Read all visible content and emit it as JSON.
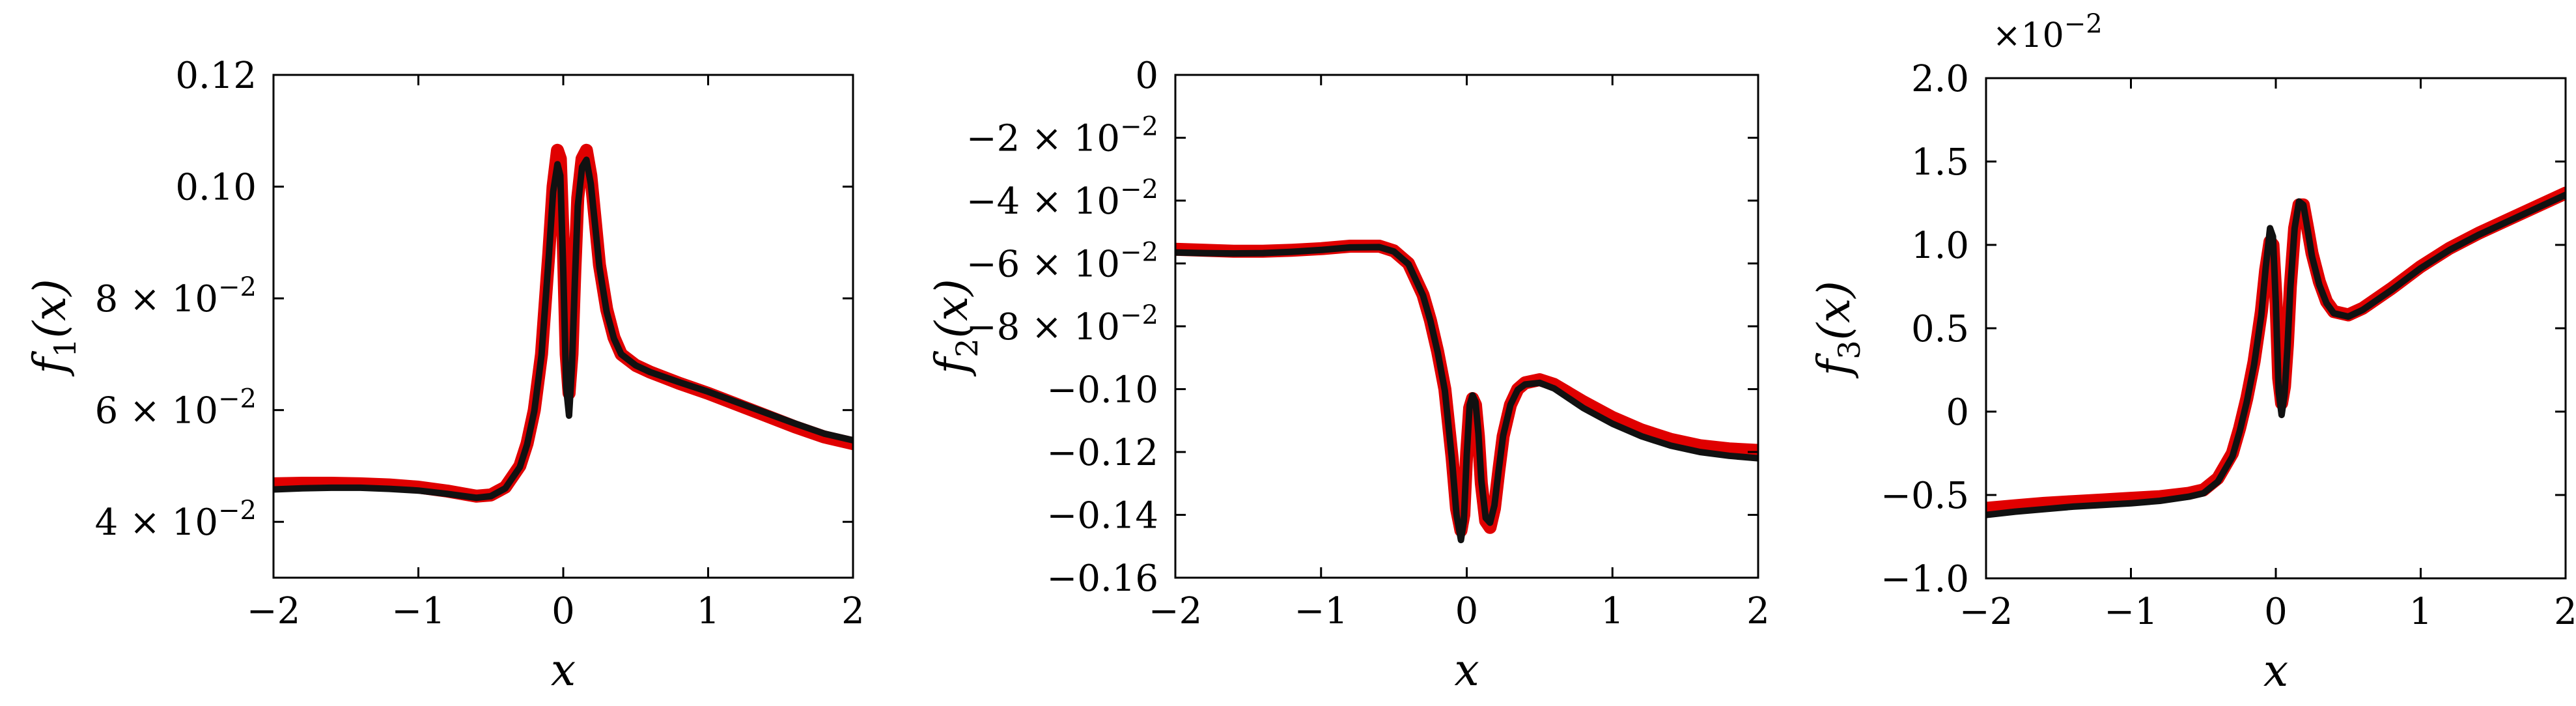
{
  "chart_data": [
    {
      "type": "line",
      "title": "",
      "xlabel": "x",
      "ylabel_main": "f",
      "ylabel_sub": "1",
      "ylabel_tail": "(x)",
      "xlim": [
        -2,
        2
      ],
      "ylim": [
        0.03,
        0.12
      ],
      "grid": false,
      "exponent_label": "",
      "x_ticks": [
        {
          "value": -2,
          "label": "−2"
        },
        {
          "value": -1,
          "label": "−1"
        },
        {
          "value": 0,
          "label": "0"
        },
        {
          "value": 1,
          "label": "1"
        },
        {
          "value": 2,
          "label": "2"
        }
      ],
      "y_ticks": [
        {
          "value": 0.04,
          "label": "4 × 10",
          "exp": "−2"
        },
        {
          "value": 0.06,
          "label": "6 × 10",
          "exp": "−2"
        },
        {
          "value": 0.08,
          "label": "8 × 10",
          "exp": "−2"
        },
        {
          "value": 0.1,
          "label": "0.10",
          "exp": ""
        },
        {
          "value": 0.12,
          "label": "0.12",
          "exp": ""
        }
      ],
      "series": [
        {
          "color": "#e00000",
          "x": [
            -2,
            -1.8,
            -1.6,
            -1.4,
            -1.2,
            -1.0,
            -0.8,
            -0.6,
            -0.5,
            -0.4,
            -0.3,
            -0.25,
            -0.2,
            -0.15,
            -0.1,
            -0.07,
            -0.04,
            -0.02,
            0.0,
            0.02,
            0.04,
            0.06,
            0.08,
            0.1,
            0.13,
            0.16,
            0.19,
            0.22,
            0.25,
            0.3,
            0.35,
            0.4,
            0.5,
            0.6,
            0.8,
            1.0,
            1.2,
            1.4,
            1.6,
            1.8,
            2.0
          ],
          "y": [
            0.0468,
            0.0469,
            0.0469,
            0.0468,
            0.0466,
            0.0462,
            0.0455,
            0.0446,
            0.0448,
            0.0462,
            0.05,
            0.054,
            0.06,
            0.07,
            0.088,
            0.1,
            0.1065,
            0.105,
            0.09,
            0.07,
            0.063,
            0.07,
            0.085,
            0.098,
            0.105,
            0.1065,
            0.102,
            0.094,
            0.086,
            0.078,
            0.073,
            0.07,
            0.068,
            0.0668,
            0.0648,
            0.063,
            0.061,
            0.059,
            0.057,
            0.0552,
            0.054
          ]
        },
        {
          "color": "#111111",
          "x": [
            -2,
            -1.8,
            -1.6,
            -1.4,
            -1.2,
            -1.0,
            -0.8,
            -0.6,
            -0.5,
            -0.4,
            -0.3,
            -0.25,
            -0.2,
            -0.15,
            -0.1,
            -0.07,
            -0.04,
            -0.02,
            0.0,
            0.02,
            0.04,
            0.06,
            0.08,
            0.1,
            0.13,
            0.16,
            0.19,
            0.22,
            0.25,
            0.3,
            0.35,
            0.4,
            0.5,
            0.6,
            0.8,
            1.0,
            1.2,
            1.4,
            1.6,
            1.8,
            2.0
          ],
          "y": [
            0.0458,
            0.046,
            0.0461,
            0.0461,
            0.0459,
            0.0456,
            0.045,
            0.0443,
            0.0446,
            0.046,
            0.0498,
            0.0538,
            0.0598,
            0.0698,
            0.0875,
            0.099,
            0.104,
            0.102,
            0.085,
            0.064,
            0.059,
            0.068,
            0.083,
            0.0965,
            0.1035,
            0.1048,
            0.1005,
            0.093,
            0.0855,
            0.0775,
            0.0728,
            0.07,
            0.068,
            0.0668,
            0.065,
            0.0633,
            0.0614,
            0.0595,
            0.0576,
            0.0558,
            0.0546
          ]
        }
      ]
    },
    {
      "type": "line",
      "title": "",
      "xlabel": "x",
      "ylabel_main": "f",
      "ylabel_sub": "2",
      "ylabel_tail": "(x)",
      "xlim": [
        -2,
        2
      ],
      "ylim": [
        -0.16,
        0
      ],
      "grid": false,
      "exponent_label": "",
      "x_ticks": [
        {
          "value": -2,
          "label": "−2"
        },
        {
          "value": -1,
          "label": "−1"
        },
        {
          "value": 0,
          "label": "0"
        },
        {
          "value": 1,
          "label": "1"
        },
        {
          "value": 2,
          "label": "2"
        }
      ],
      "y_ticks": [
        {
          "value": -0.16,
          "label": "−0.16",
          "exp": ""
        },
        {
          "value": -0.14,
          "label": "−0.14",
          "exp": ""
        },
        {
          "value": -0.12,
          "label": "−0.12",
          "exp": ""
        },
        {
          "value": -0.1,
          "label": "−0.10",
          "exp": ""
        },
        {
          "value": -0.08,
          "label": "−8 × 10",
          "exp": "−2"
        },
        {
          "value": -0.06,
          "label": "−6 × 10",
          "exp": "−2"
        },
        {
          "value": -0.04,
          "label": "−4 × 10",
          "exp": "−2"
        },
        {
          "value": -0.02,
          "label": "−2 × 10",
          "exp": "−2"
        },
        {
          "value": 0,
          "label": "0",
          "exp": ""
        }
      ],
      "series": [
        {
          "color": "#e00000",
          "x": [
            -2,
            -1.8,
            -1.6,
            -1.4,
            -1.2,
            -1.0,
            -0.8,
            -0.6,
            -0.5,
            -0.4,
            -0.3,
            -0.25,
            -0.2,
            -0.15,
            -0.1,
            -0.07,
            -0.04,
            -0.02,
            0.0,
            0.02,
            0.04,
            0.06,
            0.08,
            0.1,
            0.13,
            0.16,
            0.19,
            0.22,
            0.25,
            0.3,
            0.35,
            0.4,
            0.5,
            0.6,
            0.8,
            1.0,
            1.2,
            1.4,
            1.6,
            1.8,
            2.0
          ],
          "y": [
            -0.0555,
            -0.0558,
            -0.0561,
            -0.0561,
            -0.0558,
            -0.0553,
            -0.0545,
            -0.0545,
            -0.056,
            -0.06,
            -0.07,
            -0.078,
            -0.088,
            -0.1,
            -0.122,
            -0.138,
            -0.145,
            -0.14,
            -0.12,
            -0.106,
            -0.103,
            -0.105,
            -0.115,
            -0.13,
            -0.142,
            -0.144,
            -0.138,
            -0.126,
            -0.115,
            -0.105,
            -0.1,
            -0.098,
            -0.097,
            -0.0985,
            -0.104,
            -0.109,
            -0.113,
            -0.116,
            -0.118,
            -0.119,
            -0.1195
          ]
        },
        {
          "color": "#111111",
          "x": [
            -2,
            -1.8,
            -1.6,
            -1.4,
            -1.2,
            -1.0,
            -0.8,
            -0.6,
            -0.5,
            -0.4,
            -0.3,
            -0.25,
            -0.2,
            -0.15,
            -0.1,
            -0.07,
            -0.04,
            -0.02,
            0.0,
            0.02,
            0.04,
            0.06,
            0.08,
            0.1,
            0.13,
            0.16,
            0.19,
            0.22,
            0.25,
            0.3,
            0.35,
            0.4,
            0.5,
            0.6,
            0.8,
            1.0,
            1.2,
            1.4,
            1.6,
            1.8,
            2.0
          ],
          "y": [
            -0.0565,
            -0.0567,
            -0.0568,
            -0.0567,
            -0.0563,
            -0.0557,
            -0.0549,
            -0.0548,
            -0.0562,
            -0.0602,
            -0.0702,
            -0.0782,
            -0.0882,
            -0.1005,
            -0.123,
            -0.14,
            -0.148,
            -0.142,
            -0.121,
            -0.105,
            -0.102,
            -0.104,
            -0.114,
            -0.129,
            -0.141,
            -0.1425,
            -0.137,
            -0.1255,
            -0.1148,
            -0.105,
            -0.1002,
            -0.0985,
            -0.098,
            -0.0998,
            -0.106,
            -0.111,
            -0.115,
            -0.118,
            -0.12,
            -0.1212,
            -0.122
          ]
        }
      ]
    },
    {
      "type": "line",
      "title": "",
      "xlabel": "x",
      "ylabel_main": "f",
      "ylabel_sub": "3",
      "ylabel_tail": "(x)",
      "xlim": [
        -2,
        2
      ],
      "ylim": [
        -1.0,
        2.0
      ],
      "grid": false,
      "exponent_label": "×10",
      "exponent_power": "−2",
      "x_ticks": [
        {
          "value": -2,
          "label": "−2"
        },
        {
          "value": -1,
          "label": "−1"
        },
        {
          "value": 0,
          "label": "0"
        },
        {
          "value": 1,
          "label": "1"
        },
        {
          "value": 2,
          "label": "2"
        }
      ],
      "y_ticks": [
        {
          "value": -1.0,
          "label": "−1.0",
          "exp": ""
        },
        {
          "value": -0.5,
          "label": "−0.5",
          "exp": ""
        },
        {
          "value": 0,
          "label": "0",
          "exp": ""
        },
        {
          "value": 0.5,
          "label": "0.5",
          "exp": ""
        },
        {
          "value": 1.0,
          "label": "1.0",
          "exp": ""
        },
        {
          "value": 1.5,
          "label": "1.5",
          "exp": ""
        },
        {
          "value": 2.0,
          "label": "2.0",
          "exp": ""
        }
      ],
      "series": [
        {
          "color": "#e00000",
          "x": [
            -2,
            -1.8,
            -1.6,
            -1.4,
            -1.2,
            -1.0,
            -0.8,
            -0.6,
            -0.5,
            -0.4,
            -0.3,
            -0.25,
            -0.2,
            -0.15,
            -0.1,
            -0.07,
            -0.04,
            -0.02,
            0.0,
            0.02,
            0.04,
            0.06,
            0.08,
            0.1,
            0.13,
            0.16,
            0.19,
            0.22,
            0.25,
            0.3,
            0.35,
            0.4,
            0.5,
            0.6,
            0.8,
            1.0,
            1.2,
            1.4,
            1.6,
            1.8,
            2.0
          ],
          "y": [
            -0.58,
            -0.565,
            -0.55,
            -0.54,
            -0.53,
            -0.52,
            -0.51,
            -0.49,
            -0.47,
            -0.4,
            -0.25,
            -0.1,
            0.08,
            0.3,
            0.6,
            0.85,
            1.02,
            1.0,
            0.7,
            0.2,
            0.05,
            0.15,
            0.4,
            0.75,
            1.1,
            1.24,
            1.24,
            1.1,
            0.95,
            0.78,
            0.66,
            0.6,
            0.58,
            0.62,
            0.74,
            0.87,
            0.98,
            1.07,
            1.15,
            1.23,
            1.31
          ]
        },
        {
          "color": "#111111",
          "x": [
            -2,
            -1.8,
            -1.6,
            -1.4,
            -1.2,
            -1.0,
            -0.8,
            -0.6,
            -0.5,
            -0.4,
            -0.3,
            -0.25,
            -0.2,
            -0.15,
            -0.1,
            -0.07,
            -0.04,
            -0.02,
            0.0,
            0.02,
            0.04,
            0.06,
            0.08,
            0.1,
            0.13,
            0.16,
            0.19,
            0.22,
            0.25,
            0.3,
            0.35,
            0.4,
            0.5,
            0.6,
            0.8,
            1.0,
            1.2,
            1.4,
            1.6,
            1.8,
            2.0
          ],
          "y": [
            -0.62,
            -0.6,
            -0.585,
            -0.57,
            -0.56,
            -0.55,
            -0.535,
            -0.51,
            -0.49,
            -0.42,
            -0.27,
            -0.12,
            0.06,
            0.28,
            0.58,
            0.86,
            1.1,
            1.05,
            0.65,
            0.12,
            -0.02,
            0.1,
            0.38,
            0.74,
            1.1,
            1.26,
            1.24,
            1.09,
            0.93,
            0.76,
            0.65,
            0.59,
            0.57,
            0.61,
            0.73,
            0.86,
            0.97,
            1.06,
            1.14,
            1.22,
            1.3
          ]
        }
      ]
    }
  ]
}
